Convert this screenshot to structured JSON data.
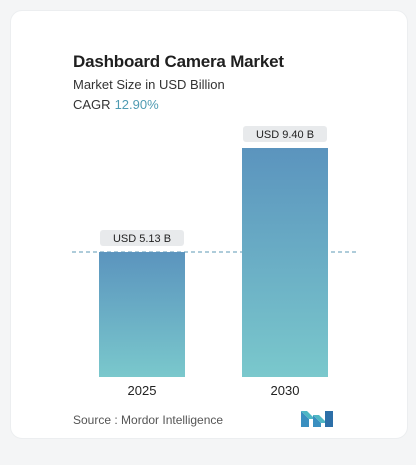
{
  "title": "Dashboard Camera Market",
  "subtitle": "Market Size in USD Billion",
  "cagr_label": "CAGR",
  "cagr_value": "12.90%",
  "source": "Source :  Mordor Intelligence",
  "colors": {
    "bar_top": "#5b94be",
    "bar_bottom": "#7ac8cc",
    "label_bg": "#e8eaec",
    "cagr": "#4f9bb2",
    "dashed_line": "#5c9ab4"
  },
  "chart_data": {
    "type": "bar",
    "categories": [
      "2025",
      "2030"
    ],
    "values": [
      5.13,
      9.4
    ],
    "value_labels": [
      "USD 5.13 B",
      "USD 9.40 B"
    ],
    "title": "Dashboard Camera Market",
    "xlabel": "",
    "ylabel": "",
    "grid": false,
    "legend": "none"
  }
}
